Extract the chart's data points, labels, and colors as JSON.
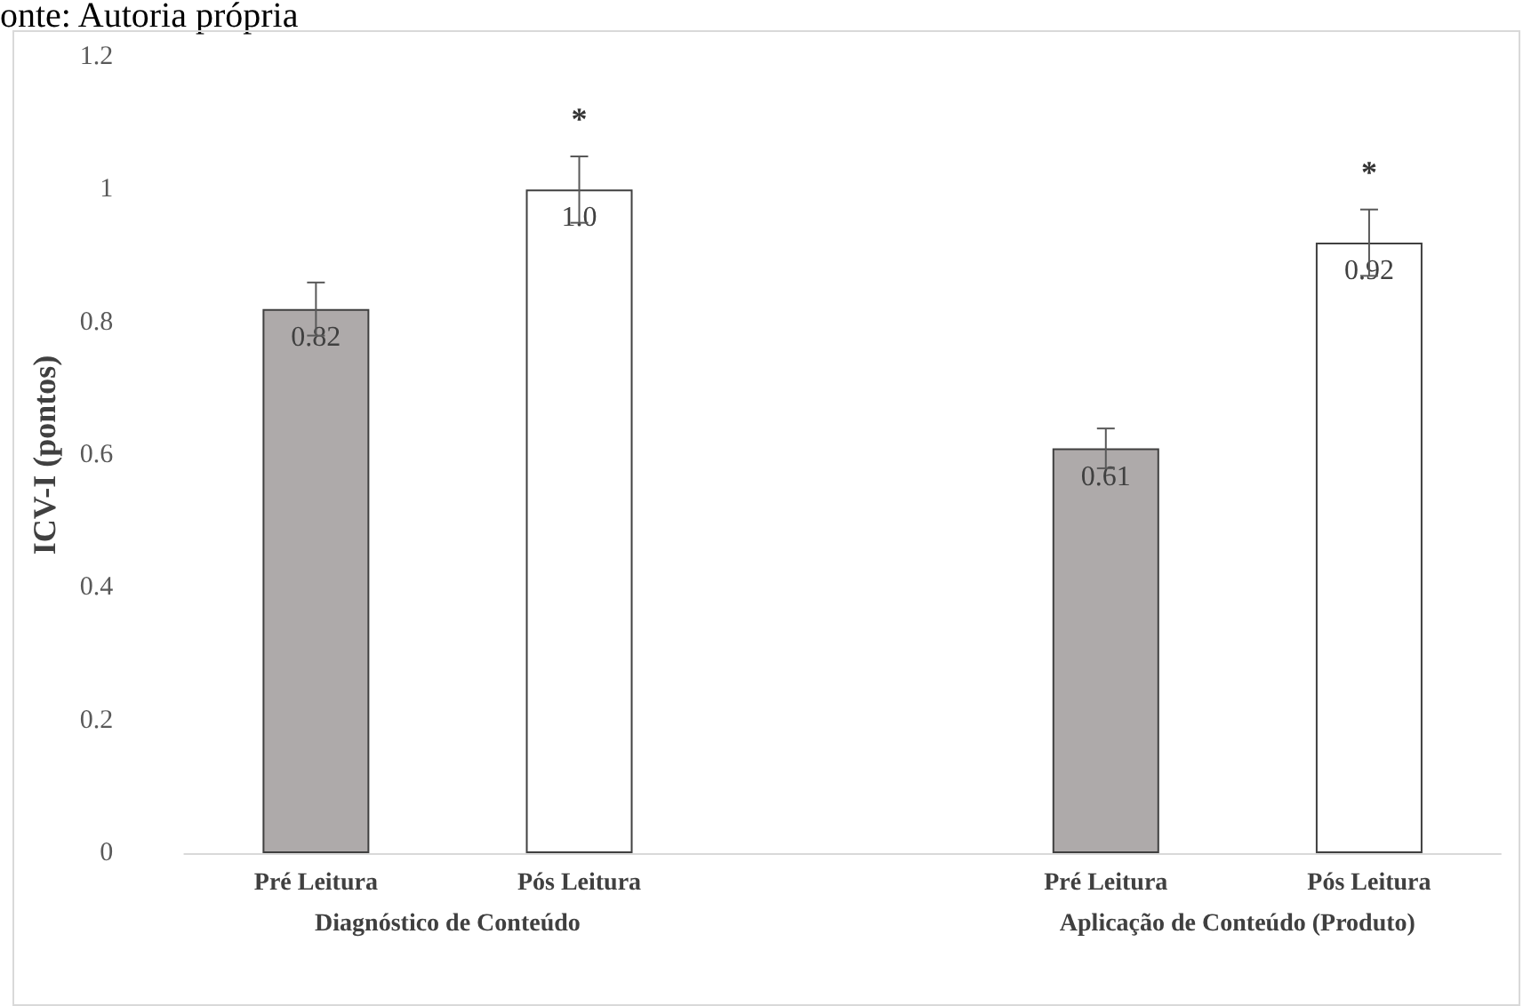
{
  "chart_data": {
    "type": "bar",
    "ylabel": "ICV-I (pontos)",
    "categories": [
      "Pré Leitura",
      "Pós Leitura",
      null,
      "Pré Leitura",
      "Pós Leitura"
    ],
    "values": [
      0.82,
      1.0,
      null,
      0.61,
      0.92
    ],
    "colors": [
      "#aeaaaa",
      "#ffffff",
      null,
      "#aeaaaa",
      "#ffffff"
    ],
    "errors": [
      0.04,
      0.05,
      null,
      0.03,
      0.05
    ],
    "value_labels": [
      "0.82",
      "1.0",
      null,
      "0.61",
      "0.92"
    ],
    "ylim": [
      0,
      1.2
    ],
    "yticks": [
      0,
      0.2,
      0.4,
      0.6,
      0.8,
      1,
      1.2
    ],
    "grid": false,
    "annotations": [
      "onte: Autoria própria",
      "Diagnóstico de Conteúdo",
      "Aplicação de Conteúdo (Produto)",
      "*",
      "*"
    ]
  }
}
